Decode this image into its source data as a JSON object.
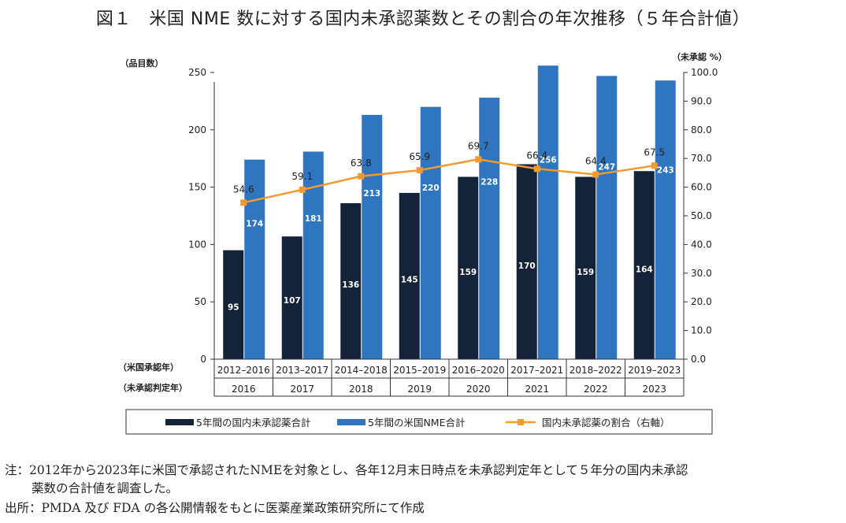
{
  "title": "図１　米国 NME 数に対する国内未承認薬数とその割合の年次推移（５年合計値）",
  "colors": {
    "domestic": "#14223a",
    "us": "#2f75bf",
    "ratio": "#f29a2e",
    "axis": "#333333",
    "grid": "#999999"
  },
  "chart_data": {
    "type": "bar",
    "title": "図１　米国 NME 数に対する国内未承認薬数とその割合の年次推移（５年合計値）",
    "ylabel_left": "（品目数）",
    "ylabel_right": "（未承認 %）",
    "xlabel_row1": "（米国承認年）",
    "xlabel_row2": "（未承認判定年）",
    "categories": [
      "2012–2016",
      "2013–2017",
      "2014–2018",
      "2015–2019",
      "2016–2020",
      "2017–2021",
      "2018–2022",
      "2019–2023"
    ],
    "categories2": [
      "2016",
      "2017",
      "2018",
      "2019",
      "2020",
      "2021",
      "2022",
      "2023"
    ],
    "ylim_left": [
      0,
      250
    ],
    "yticks_left": [
      "0",
      "50",
      "100",
      "150",
      "200",
      "250"
    ],
    "ylim_right": [
      0,
      100
    ],
    "yticks_right": [
      "0.0",
      "10.0",
      "20.0",
      "30.0",
      "40.0",
      "50.0",
      "60.0",
      "70.0",
      "80.0",
      "90.0",
      "100.0"
    ],
    "series": [
      {
        "name": "5年間の国内未承認薬合計",
        "kind": "bar",
        "axis": "left",
        "values": [
          95,
          107,
          136,
          145,
          159,
          170,
          159,
          164
        ],
        "labels": [
          "95",
          "107",
          "136",
          "145",
          "159",
          "170",
          "159",
          "164"
        ]
      },
      {
        "name": "5年間の米国NME合計",
        "kind": "bar",
        "axis": "left",
        "values": [
          174,
          181,
          213,
          220,
          228,
          256,
          247,
          243
        ],
        "labels": [
          "174",
          "181",
          "213",
          "220",
          "228",
          "256",
          "247",
          "243"
        ]
      },
      {
        "name": "国内未承認薬の割合（右軸）",
        "kind": "line",
        "axis": "right",
        "values": [
          54.6,
          59.1,
          63.8,
          65.9,
          69.7,
          66.4,
          64.4,
          67.5
        ],
        "labels": [
          "54.6",
          "59.1",
          "63.8",
          "65.9",
          "69.7",
          "66.4",
          "64.4",
          "67.5"
        ]
      }
    ],
    "legend": "bottom"
  },
  "notes": {
    "note_line1": "注：2012年から2023年に米国で承認されたNMEを対象とし、各年12月末日時点を未承認判定年として５年分の国内未承認",
    "note_line2": "薬数の合計値を調査した。",
    "source": "出所：PMDA 及び FDA の各公開情報をもとに医薬産業政策研究所にて作成"
  }
}
